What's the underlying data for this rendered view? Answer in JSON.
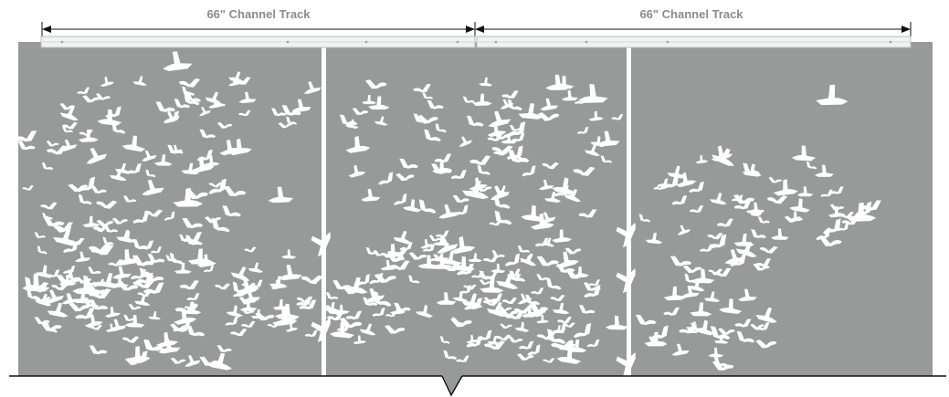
{
  "dimensions": [
    {
      "label": "66\" Channel Track"
    },
    {
      "label": "66\" Channel Track"
    }
  ],
  "colors": {
    "panel": "#969a99",
    "track_fill": "#f1f2f2",
    "track_stroke": "#b9bcbc",
    "dimension_text": "#8a8a8a",
    "dimension_line": "#111111",
    "birds": "#ffffff"
  },
  "artwork": {
    "motif": "flock-of-birds-icon",
    "panel_count": 3
  }
}
